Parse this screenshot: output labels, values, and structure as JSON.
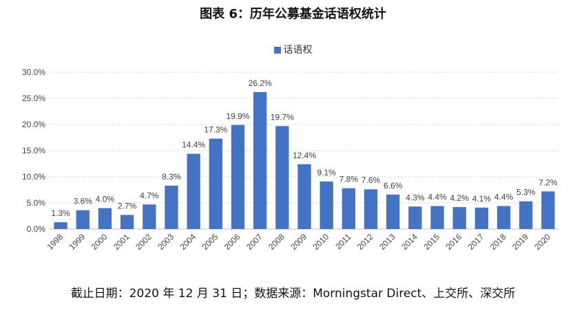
{
  "title": "图表 6：历年公募基金话语权统计",
  "source": "截止日期：2020 年 12 月 31 日；数据来源：Morningstar Direct、上交所、深交所",
  "colors": {
    "bar": "#4472c4",
    "grid": "#d9d9d9",
    "text": "#404040"
  },
  "chart_data": {
    "type": "bar",
    "categories": [
      "1998",
      "1999",
      "2000",
      "2001",
      "2002",
      "2003",
      "2004",
      "2005",
      "2006",
      "2007",
      "2008",
      "2009",
      "2010",
      "2011",
      "2012",
      "2013",
      "2014",
      "2015",
      "2016",
      "2017",
      "2018",
      "2019",
      "2020"
    ],
    "series": [
      {
        "name": "话语权",
        "values": [
          1.3,
          3.6,
          4.0,
          2.7,
          4.7,
          8.3,
          14.4,
          17.3,
          19.9,
          26.2,
          19.7,
          12.4,
          9.1,
          7.8,
          7.6,
          6.6,
          4.3,
          4.4,
          4.2,
          4.1,
          4.4,
          5.3,
          7.2
        ],
        "labels": [
          "1.3%",
          "3.6%",
          "4.0%",
          "2.7%",
          "4.7%",
          "8.3%",
          "14.4%",
          "17.3%",
          "19.9%",
          "26.2%",
          "19.7%",
          "12.4%",
          "9.1%",
          "7.8%",
          "7.6%",
          "6.6%",
          "4.3%",
          "4.4%",
          "4.2%",
          "4.1%",
          "4.4%",
          "5.3%",
          "7.2%"
        ]
      }
    ],
    "y_ticks": [
      "0.0%",
      "5.0%",
      "10.0%",
      "15.0%",
      "20.0%",
      "25.0%",
      "30.0%"
    ],
    "ylim": [
      0,
      30
    ],
    "grid": true,
    "legend": "top-center",
    "xlabel": "",
    "ylabel": ""
  }
}
